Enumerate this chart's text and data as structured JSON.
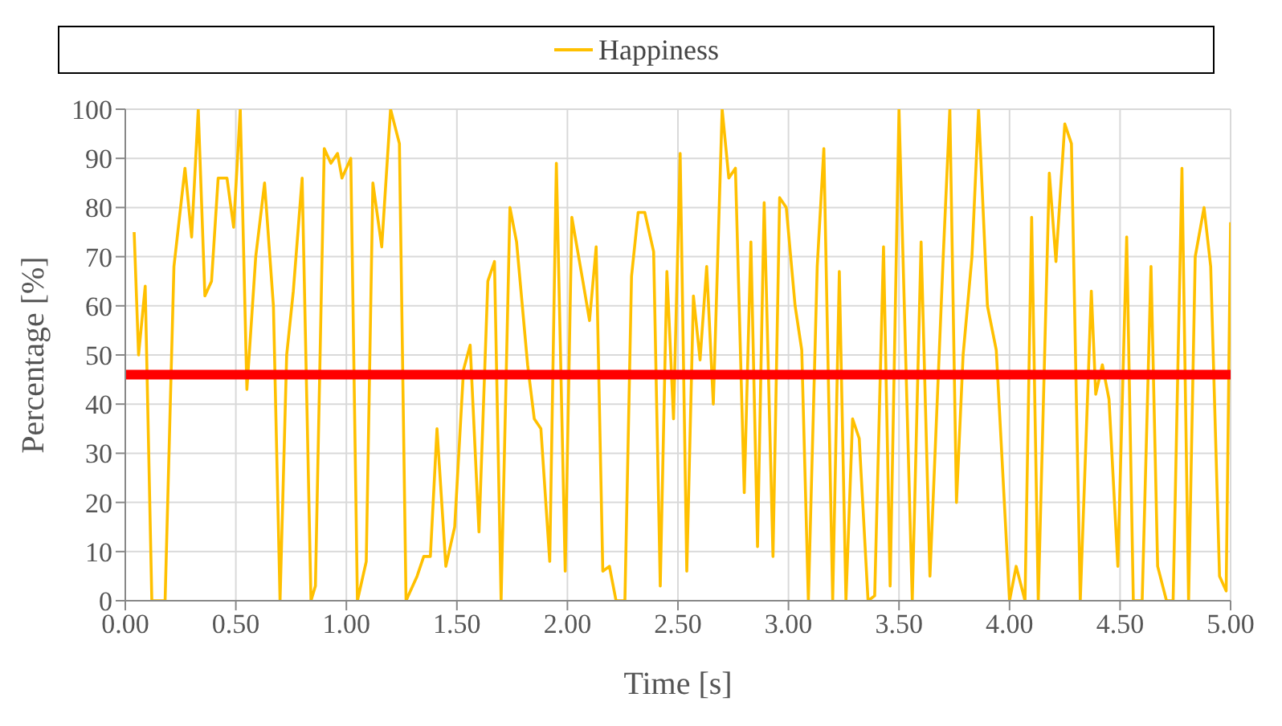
{
  "chart_data": {
    "type": "line",
    "xlabel": "Time [s]",
    "ylabel": "Percentage [%]",
    "x": [
      0.04,
      0.06,
      0.09,
      0.12,
      0.18,
      0.22,
      0.27,
      0.3,
      0.33,
      0.36,
      0.39,
      0.42,
      0.46,
      0.49,
      0.52,
      0.55,
      0.59,
      0.63,
      0.67,
      0.7,
      0.73,
      0.76,
      0.8,
      0.84,
      0.86,
      0.9,
      0.93,
      0.96,
      0.98,
      1.02,
      1.05,
      1.09,
      1.12,
      1.16,
      1.2,
      1.24,
      1.27,
      1.32,
      1.35,
      1.38,
      1.41,
      1.45,
      1.49,
      1.53,
      1.56,
      1.6,
      1.64,
      1.67,
      1.7,
      1.74,
      1.77,
      1.82,
      1.85,
      1.88,
      1.92,
      1.95,
      1.99,
      2.02,
      2.07,
      2.1,
      2.13,
      2.16,
      2.19,
      2.22,
      2.26,
      2.29,
      2.32,
      2.35,
      2.39,
      2.42,
      2.45,
      2.48,
      2.51,
      2.54,
      2.57,
      2.6,
      2.63,
      2.66,
      2.7,
      2.73,
      2.76,
      2.8,
      2.83,
      2.86,
      2.89,
      2.93,
      2.96,
      2.99,
      3.03,
      3.06,
      3.09,
      3.13,
      3.16,
      3.2,
      3.23,
      3.26,
      3.29,
      3.32,
      3.36,
      3.39,
      3.43,
      3.46,
      3.5,
      3.56,
      3.6,
      3.64,
      3.7,
      3.73,
      3.76,
      3.79,
      3.83,
      3.86,
      3.9,
      3.94,
      4.0,
      4.03,
      4.07,
      4.1,
      4.13,
      4.18,
      4.21,
      4.25,
      4.28,
      4.32,
      4.37,
      4.39,
      4.42,
      4.45,
      4.49,
      4.53,
      4.56,
      4.6,
      4.64,
      4.67,
      4.71,
      4.74,
      4.78,
      4.81,
      4.84,
      4.88,
      4.91,
      4.95,
      4.98,
      5.0
    ],
    "series": [
      {
        "name": "Happiness",
        "color": "#ffc000",
        "values": [
          75,
          50,
          64,
          0,
          0,
          68,
          88,
          74,
          100,
          62,
          65,
          86,
          86,
          76,
          100,
          43,
          70,
          85,
          60,
          0,
          50,
          63,
          86,
          0,
          3,
          92,
          89,
          91,
          86,
          90,
          0,
          8,
          85,
          72,
          100,
          93,
          0,
          5,
          9,
          9,
          35,
          7,
          15,
          47,
          52,
          14,
          65,
          69,
          0,
          80,
          73,
          48,
          37,
          35,
          8,
          89,
          6,
          78,
          65,
          57,
          72,
          6,
          7,
          0,
          0,
          66,
          79,
          79,
          71,
          3,
          67,
          37,
          91,
          6,
          62,
          49,
          68,
          40,
          100,
          86,
          88,
          22,
          73,
          11,
          81,
          9,
          82,
          80,
          60,
          51,
          0,
          68,
          92,
          0,
          67,
          0,
          37,
          33,
          0,
          1,
          72,
          3,
          100,
          0,
          73,
          5,
          70,
          100,
          20,
          50,
          70,
          100,
          60,
          51,
          0,
          7,
          0,
          78,
          0,
          87,
          69,
          97,
          93,
          0,
          63,
          42,
          48,
          41,
          7,
          74,
          0,
          0,
          68,
          7,
          0,
          0,
          88,
          0,
          70,
          80,
          68,
          5,
          2,
          77
        ]
      }
    ],
    "xlim": [
      0,
      5
    ],
    "xticks": [
      {
        "value": 0,
        "label": "0.00"
      },
      {
        "value": 0.5,
        "label": "0.50"
      },
      {
        "value": 1,
        "label": "1.00"
      },
      {
        "value": 1.5,
        "label": "1.50"
      },
      {
        "value": 2,
        "label": "2.00"
      },
      {
        "value": 2.5,
        "label": "2.50"
      },
      {
        "value": 3,
        "label": "3.00"
      },
      {
        "value": 3.5,
        "label": "3.50"
      },
      {
        "value": 4,
        "label": "4.00"
      },
      {
        "value": 4.5,
        "label": "4.50"
      },
      {
        "value": 5,
        "label": "5.00"
      }
    ],
    "ylim": [
      0,
      100
    ],
    "yticks": [
      0,
      10,
      20,
      30,
      40,
      50,
      60,
      70,
      80,
      90,
      100
    ],
    "ref_lines": [
      {
        "axis": "y",
        "value": 46,
        "color": "#ff0000"
      }
    ],
    "grid": true,
    "legend": "top",
    "marker": "none",
    "line_style": "solid"
  }
}
